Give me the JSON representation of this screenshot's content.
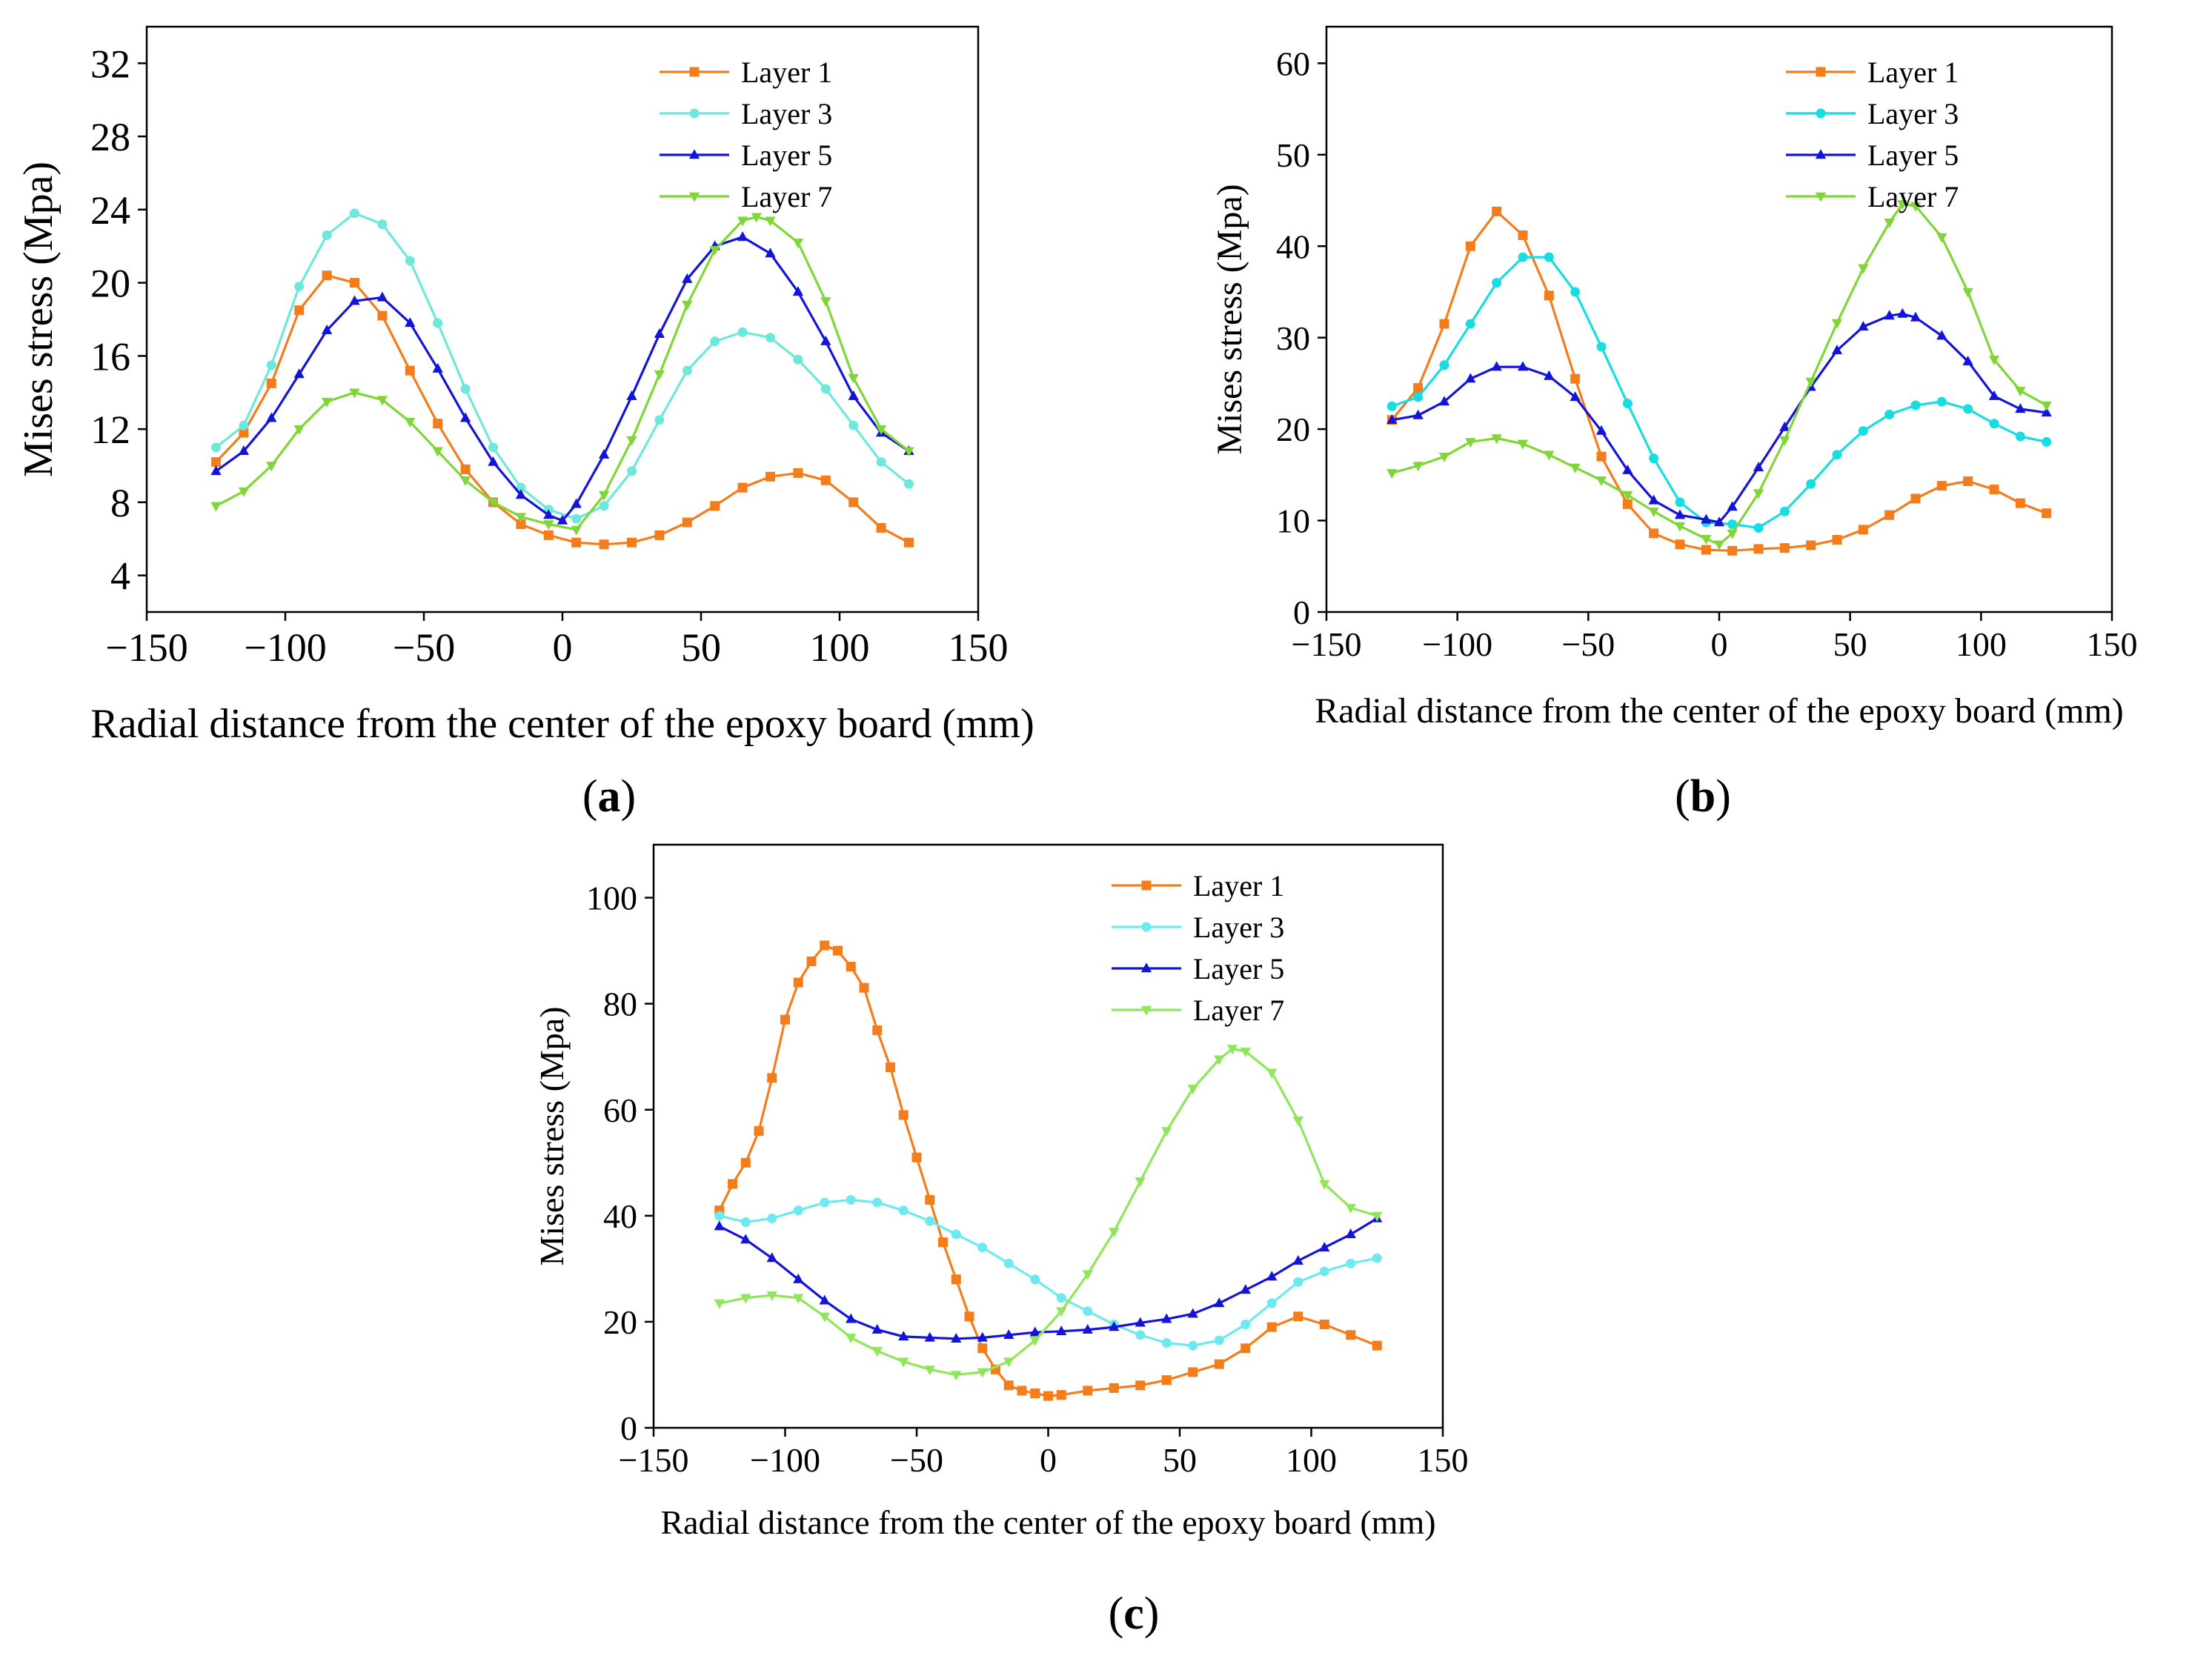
{
  "chart_data": [
    {
      "type": "line",
      "panel_label": "(a)",
      "xlabel": "Radial distance from the center of the epoxy board (mm)",
      "ylabel": "Mises stress (Mpa)",
      "xlim": [
        -150,
        150
      ],
      "ylim": [
        2,
        34
      ],
      "xticks": [
        "−150",
        "−100",
        "−50",
        "0",
        "50",
        "100",
        "150"
      ],
      "yticks": [
        "4",
        "8",
        "12",
        "16",
        "20",
        "24",
        "28",
        "32"
      ],
      "legend_position": "top-right",
      "series": [
        {
          "name": "Layer 1",
          "color": "#f47c1a",
          "marker": "square",
          "x": [
            -125,
            -115,
            -105,
            -95,
            -85,
            -75,
            -65,
            -55,
            -45,
            -35,
            -25,
            -15,
            -5,
            5,
            15,
            25,
            35,
            45,
            55,
            65,
            75,
            85,
            95,
            105,
            115,
            125
          ],
          "y": [
            10.2,
            11.8,
            14.5,
            18.5,
            20.4,
            20.0,
            18.2,
            15.2,
            12.3,
            9.8,
            8.0,
            6.8,
            6.2,
            5.8,
            5.7,
            5.8,
            6.2,
            6.9,
            7.8,
            8.8,
            9.4,
            9.6,
            9.2,
            8.0,
            6.6,
            5.8
          ]
        },
        {
          "name": "Layer 3",
          "color": "#6fe8dc",
          "marker": "circle",
          "x": [
            -125,
            -115,
            -105,
            -95,
            -85,
            -75,
            -65,
            -55,
            -45,
            -35,
            -25,
            -15,
            -5,
            5,
            15,
            25,
            35,
            45,
            55,
            65,
            75,
            85,
            95,
            105,
            115,
            125
          ],
          "y": [
            11.0,
            12.2,
            15.5,
            19.8,
            22.6,
            23.8,
            23.2,
            21.2,
            17.8,
            14.2,
            11.0,
            8.8,
            7.6,
            7.1,
            7.8,
            9.7,
            12.5,
            15.2,
            16.8,
            17.3,
            17.0,
            15.8,
            14.2,
            12.2,
            10.2,
            9.0
          ]
        },
        {
          "name": "Layer 5",
          "color": "#1414d8",
          "marker": "triangle-up",
          "x": [
            -125,
            -115,
            -105,
            -95,
            -85,
            -75,
            -65,
            -55,
            -45,
            -35,
            -25,
            -15,
            -5,
            0,
            5,
            15,
            25,
            35,
            45,
            55,
            65,
            75,
            85,
            95,
            105,
            115,
            125
          ],
          "y": [
            9.7,
            10.8,
            12.6,
            15.0,
            17.4,
            19.0,
            19.2,
            17.8,
            15.3,
            12.6,
            10.2,
            8.4,
            7.3,
            7.0,
            7.9,
            10.6,
            13.8,
            17.2,
            20.2,
            22.0,
            22.5,
            21.6,
            19.5,
            16.8,
            13.8,
            11.8,
            10.8
          ]
        },
        {
          "name": "Layer 7",
          "color": "#7fd636",
          "marker": "triangle-down",
          "x": [
            -125,
            -115,
            -105,
            -95,
            -85,
            -75,
            -65,
            -55,
            -45,
            -35,
            -25,
            -15,
            -5,
            5,
            15,
            25,
            35,
            45,
            55,
            65,
            70,
            75,
            85,
            95,
            105,
            115,
            125
          ],
          "y": [
            7.8,
            8.6,
            10.0,
            12.0,
            13.5,
            14.0,
            13.6,
            12.4,
            10.8,
            9.2,
            8.0,
            7.2,
            6.8,
            6.5,
            8.4,
            11.4,
            15.0,
            18.8,
            21.8,
            23.4,
            23.6,
            23.4,
            22.2,
            19.0,
            14.8,
            12.0,
            10.8
          ]
        }
      ]
    },
    {
      "type": "line",
      "panel_label": "(b)",
      "xlabel": "Radial distance from the center of the epoxy board (mm)",
      "ylabel": "Mises stress (Mpa)",
      "xlim": [
        -150,
        150
      ],
      "ylim": [
        0,
        64
      ],
      "xticks": [
        "−150",
        "−100",
        "−50",
        "0",
        "50",
        "100",
        "150"
      ],
      "yticks": [
        "0",
        "10",
        "20",
        "30",
        "40",
        "50",
        "60"
      ],
      "legend_position": "top-right",
      "series": [
        {
          "name": "Layer 1",
          "color": "#f47c1a",
          "marker": "square",
          "x": [
            -125,
            -115,
            -105,
            -95,
            -85,
            -75,
            -65,
            -55,
            -45,
            -35,
            -25,
            -15,
            -5,
            5,
            15,
            25,
            35,
            45,
            55,
            65,
            75,
            85,
            95,
            105,
            115,
            125
          ],
          "y": [
            21.0,
            24.5,
            31.5,
            40.0,
            43.8,
            41.2,
            34.6,
            25.5,
            17.0,
            11.8,
            8.6,
            7.4,
            6.8,
            6.7,
            6.9,
            7.0,
            7.3,
            7.9,
            9.0,
            10.6,
            12.4,
            13.8,
            14.3,
            13.4,
            11.9,
            10.8
          ]
        },
        {
          "name": "Layer 3",
          "color": "#17dde3",
          "marker": "circle",
          "x": [
            -125,
            -115,
            -105,
            -95,
            -85,
            -75,
            -65,
            -55,
            -45,
            -35,
            -25,
            -15,
            -5,
            5,
            15,
            25,
            35,
            45,
            55,
            65,
            75,
            85,
            95,
            105,
            115,
            125
          ],
          "y": [
            22.5,
            23.5,
            27.0,
            31.5,
            36.0,
            38.8,
            38.8,
            35.0,
            29.0,
            22.8,
            16.8,
            12.0,
            9.8,
            9.6,
            9.2,
            11.0,
            14.0,
            17.2,
            19.8,
            21.6,
            22.6,
            23.0,
            22.2,
            20.6,
            19.2,
            18.6
          ]
        },
        {
          "name": "Layer 5",
          "color": "#1414d8",
          "marker": "triangle-up",
          "x": [
            -125,
            -115,
            -105,
            -95,
            -85,
            -75,
            -65,
            -55,
            -45,
            -35,
            -25,
            -15,
            -5,
            0,
            5,
            15,
            25,
            35,
            45,
            55,
            65,
            70,
            75,
            85,
            95,
            105,
            115,
            125
          ],
          "y": [
            21.0,
            21.5,
            23.0,
            25.5,
            26.8,
            26.8,
            25.8,
            23.5,
            19.8,
            15.5,
            12.2,
            10.6,
            10.1,
            9.8,
            11.5,
            15.8,
            20.2,
            24.6,
            28.6,
            31.2,
            32.4,
            32.6,
            32.2,
            30.2,
            27.4,
            23.6,
            22.2,
            21.8
          ]
        },
        {
          "name": "Layer 7",
          "color": "#7fd636",
          "marker": "triangle-down",
          "x": [
            -125,
            -115,
            -105,
            -95,
            -85,
            -75,
            -65,
            -55,
            -45,
            -35,
            -25,
            -15,
            -5,
            0,
            5,
            15,
            25,
            35,
            45,
            55,
            65,
            70,
            75,
            85,
            95,
            105,
            115,
            125
          ],
          "y": [
            15.2,
            16.0,
            17.0,
            18.6,
            19.0,
            18.4,
            17.2,
            15.8,
            14.4,
            12.8,
            11.0,
            9.4,
            8.0,
            7.4,
            8.6,
            13.0,
            18.8,
            25.2,
            31.6,
            37.6,
            42.6,
            44.6,
            44.4,
            41.0,
            35.0,
            27.6,
            24.2,
            22.6
          ]
        }
      ]
    },
    {
      "type": "line",
      "panel_label": "(c)",
      "xlabel": "Radial distance from the center of the epoxy board (mm)",
      "ylabel": "Mises stress (Mpa)",
      "xlim": [
        -150,
        150
      ],
      "ylim": [
        0,
        110
      ],
      "xticks": [
        "−150",
        "−100",
        "−50",
        "0",
        "50",
        "100",
        "150"
      ],
      "yticks": [
        "0",
        "20",
        "40",
        "60",
        "80",
        "100"
      ],
      "legend_position": "top-right",
      "series": [
        {
          "name": "Layer 1",
          "color": "#f47c1a",
          "marker": "square",
          "x": [
            -125,
            -120,
            -115,
            -110,
            -105,
            -100,
            -95,
            -90,
            -85,
            -80,
            -75,
            -70,
            -65,
            -60,
            -55,
            -50,
            -45,
            -40,
            -35,
            -30,
            -25,
            -20,
            -15,
            -10,
            -5,
            0,
            5,
            15,
            25,
            35,
            45,
            55,
            65,
            75,
            85,
            95,
            105,
            115,
            125
          ],
          "y": [
            41,
            46,
            50,
            56,
            66,
            77,
            84,
            88,
            91,
            90,
            87,
            83,
            75,
            68,
            59,
            51,
            43,
            35,
            28,
            21,
            15,
            11,
            8,
            7,
            6.5,
            6,
            6.2,
            7.0,
            7.5,
            8.0,
            9.0,
            10.5,
            12.0,
            15.0,
            19.0,
            21.0,
            19.5,
            17.5,
            15.5
          ]
        },
        {
          "name": "Layer 3",
          "color": "#6ee9ef",
          "marker": "circle",
          "x": [
            -125,
            -115,
            -105,
            -95,
            -85,
            -75,
            -65,
            -55,
            -45,
            -35,
            -25,
            -15,
            -5,
            5,
            15,
            25,
            35,
            45,
            55,
            65,
            75,
            85,
            95,
            105,
            115,
            125
          ],
          "y": [
            40.0,
            38.8,
            39.5,
            41.0,
            42.5,
            43.0,
            42.5,
            41.0,
            39.0,
            36.5,
            34.0,
            31.0,
            28.0,
            24.5,
            22.0,
            19.5,
            17.5,
            16.0,
            15.5,
            16.5,
            19.5,
            23.5,
            27.5,
            29.5,
            31.0,
            32.0
          ]
        },
        {
          "name": "Layer 5",
          "color": "#1414d8",
          "marker": "triangle-up",
          "x": [
            -125,
            -115,
            -105,
            -95,
            -85,
            -75,
            -65,
            -55,
            -45,
            -35,
            -25,
            -15,
            -5,
            5,
            15,
            25,
            35,
            45,
            55,
            65,
            75,
            85,
            95,
            105,
            115,
            125
          ],
          "y": [
            38.0,
            35.5,
            32.0,
            28.0,
            24.0,
            20.5,
            18.5,
            17.2,
            17.0,
            16.8,
            17.0,
            17.5,
            18.0,
            18.2,
            18.5,
            19.0,
            19.8,
            20.5,
            21.5,
            23.5,
            26.0,
            28.5,
            31.5,
            34.0,
            36.5,
            39.5
          ]
        },
        {
          "name": "Layer 7",
          "color": "#8fe65a",
          "marker": "triangle-down",
          "x": [
            -125,
            -115,
            -105,
            -95,
            -85,
            -75,
            -65,
            -55,
            -45,
            -35,
            -25,
            -15,
            -5,
            5,
            15,
            25,
            35,
            45,
            55,
            65,
            70,
            75,
            85,
            95,
            105,
            115,
            125
          ],
          "y": [
            23.5,
            24.5,
            25.0,
            24.5,
            21.0,
            17.0,
            14.5,
            12.5,
            11.0,
            10.0,
            10.5,
            12.5,
            16.5,
            22.0,
            29.0,
            37.0,
            46.5,
            56.0,
            64.0,
            69.5,
            71.5,
            71.0,
            67.0,
            58.0,
            46.0,
            41.5,
            40.0
          ]
        }
      ]
    }
  ]
}
